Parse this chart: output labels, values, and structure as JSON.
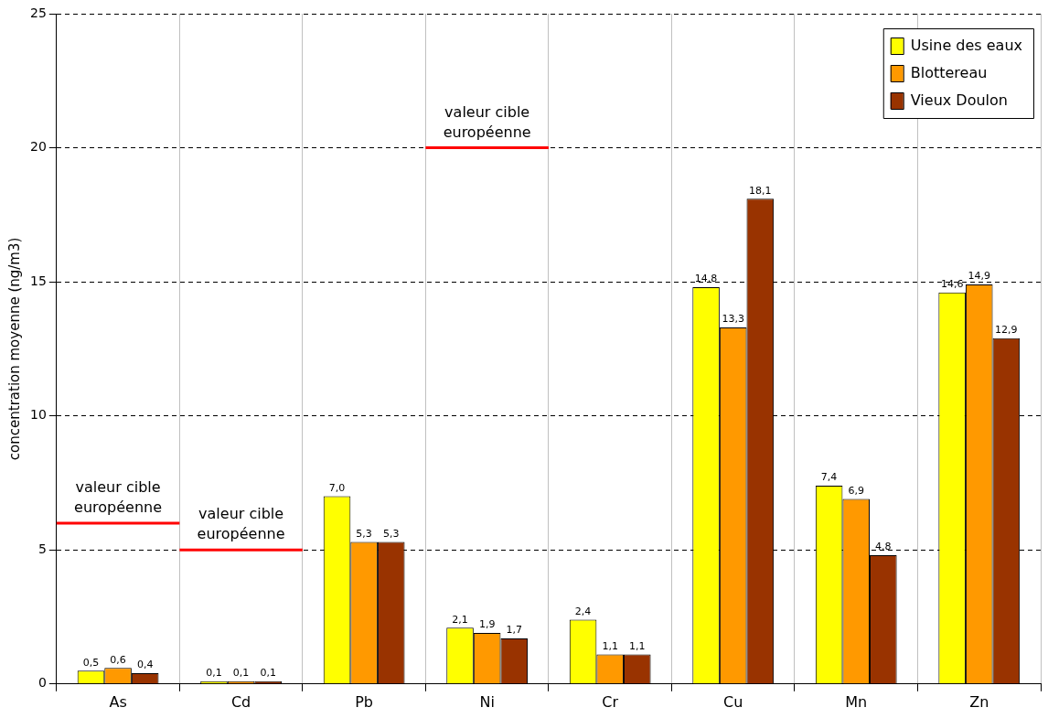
{
  "chart_data": {
    "type": "bar",
    "ylabel": "concentration moyenne (ng/m3)",
    "categories": [
      "As",
      "Cd",
      "Pb",
      "Ni",
      "Cr",
      "Cu",
      "Mn",
      "Zn"
    ],
    "series": [
      {
        "name": "Usine des eaux",
        "color": "#ffff00",
        "values": [
          0.5,
          0.1,
          7.0,
          2.1,
          2.4,
          14.8,
          7.4,
          14.6
        ],
        "value_labels": [
          "0,5",
          "0,1",
          "7,0",
          "2,1",
          "2,4",
          "14,8",
          "7,4",
          "14,6"
        ]
      },
      {
        "name": "Blottereau",
        "color": "#ff9900",
        "values": [
          0.6,
          0.1,
          5.3,
          1.9,
          1.1,
          13.3,
          6.9,
          14.9
        ],
        "value_labels": [
          "0,6",
          "0,1",
          "5,3",
          "1,9",
          "1,1",
          "13,3",
          "6,9",
          "14,9"
        ]
      },
      {
        "name": "Vieux Doulon",
        "color": "#993300",
        "values": [
          0.4,
          0.1,
          5.3,
          1.7,
          1.1,
          18.1,
          4.8,
          12.9
        ],
        "value_labels": [
          "0,4",
          "0,1",
          "5,3",
          "1,7",
          "1,1",
          "18,1",
          "4,8",
          "12,9"
        ]
      }
    ],
    "ylim": [
      0,
      25
    ],
    "yticks": [
      0,
      5,
      10,
      15,
      20,
      25
    ],
    "grid": true,
    "legend": "top right",
    "ref_lines": [
      {
        "axis": "y",
        "value": 6,
        "label": "valeur cible européenne",
        "color": "#ff0000"
      },
      {
        "axis": "y",
        "value": 5,
        "label": "valeur cible européenne",
        "color": "#ff0000"
      },
      {
        "axis": "y",
        "value": 20,
        "label": "valeur cible européenne",
        "color": "#ff0000"
      }
    ]
  }
}
